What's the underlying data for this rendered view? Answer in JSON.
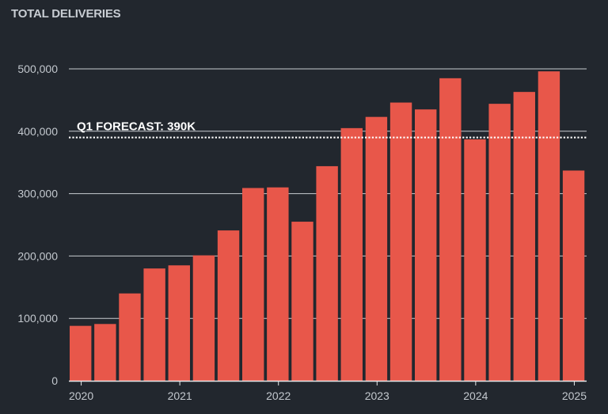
{
  "chart_data": {
    "type": "bar",
    "title": "TOTAL DELIVERIES",
    "xlabel": "",
    "ylabel": "",
    "ylim": [
      0,
      500000
    ],
    "y_ticks": [
      "0",
      "100,000",
      "200,000",
      "300,000",
      "400,000",
      "500,000"
    ],
    "x_ticks": [
      "2020",
      "2021",
      "2022",
      "2023",
      "2024",
      "2025"
    ],
    "categories": [
      "2020 Q1",
      "2020 Q2",
      "2020 Q3",
      "2020 Q4",
      "2021 Q1",
      "2021 Q2",
      "2021 Q3",
      "2021 Q4",
      "2022 Q1",
      "2022 Q2",
      "2022 Q3",
      "2022 Q4",
      "2023 Q1",
      "2023 Q2",
      "2023 Q3",
      "2023 Q4",
      "2024 Q1",
      "2024 Q2",
      "2024 Q3",
      "2024 Q4",
      "2025 Q1"
    ],
    "values": [
      88000,
      91000,
      140000,
      180000,
      185000,
      201000,
      241000,
      309000,
      310000,
      255000,
      344000,
      405000,
      423000,
      446000,
      435000,
      485000,
      387000,
      444000,
      463000,
      496000,
      337000
    ],
    "grid": true,
    "reference_line": {
      "label": "Q1 FORECAST: 390K",
      "value": 390000
    },
    "colors": {
      "bar": "#e8574a",
      "background": "#22272e",
      "grid": "#c8ccd0",
      "text": "#c3c8ce"
    }
  }
}
